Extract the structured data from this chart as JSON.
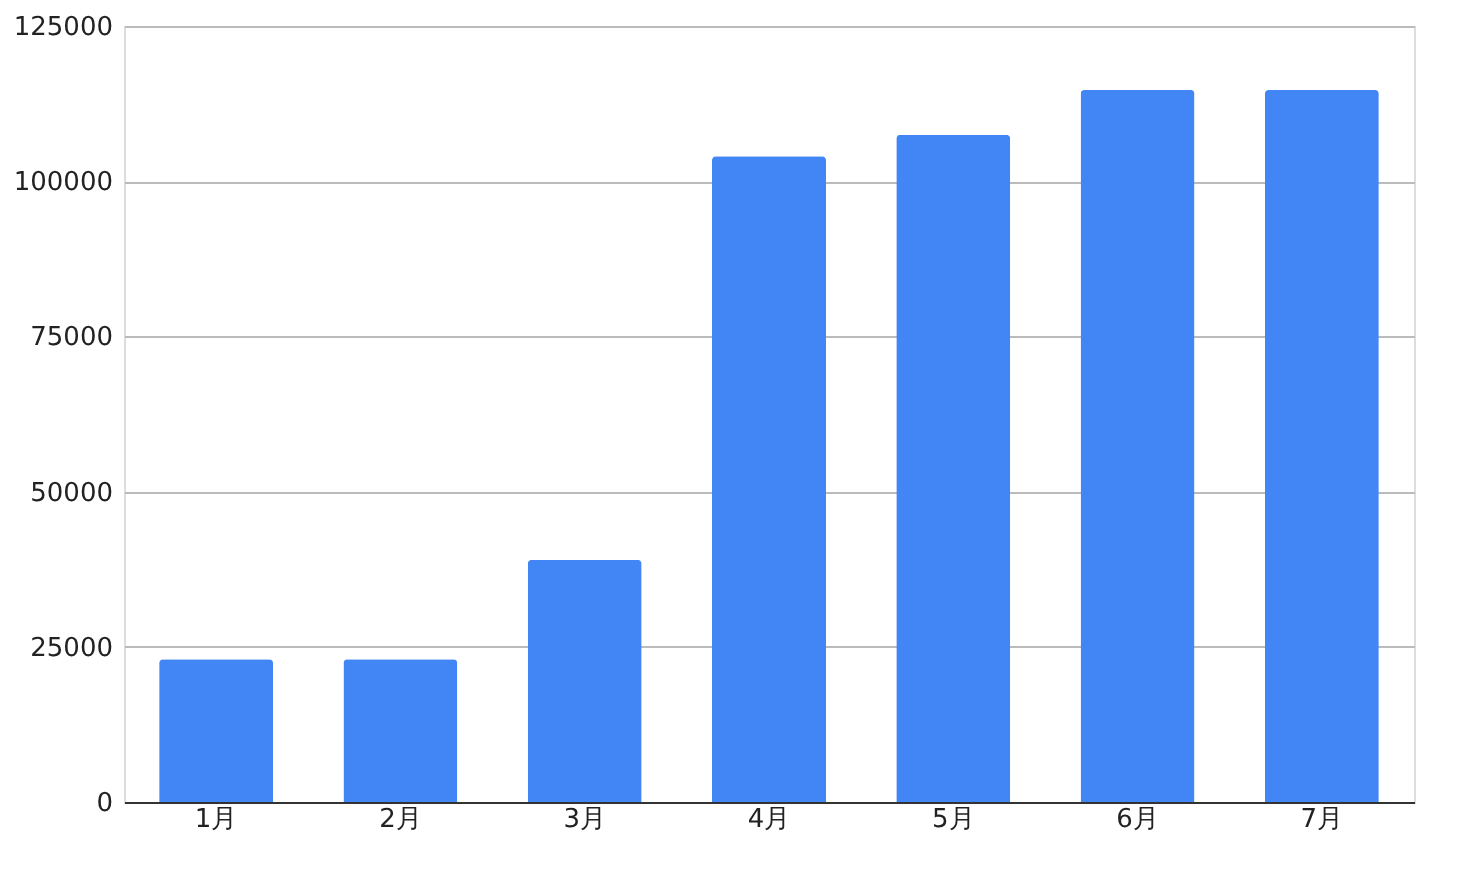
{
  "chart_data": {
    "type": "bar",
    "categories": [
      "1月",
      "2月",
      "3月",
      "4月",
      "5月",
      "6月",
      "7月"
    ],
    "values": [
      23000,
      23000,
      39000,
      104000,
      107500,
      114700,
      114700
    ],
    "color": "#4285f4",
    "ylim": [
      0,
      125000
    ],
    "yticks": [
      0,
      25000,
      50000,
      75000,
      100000,
      125000
    ],
    "grid": "y"
  }
}
